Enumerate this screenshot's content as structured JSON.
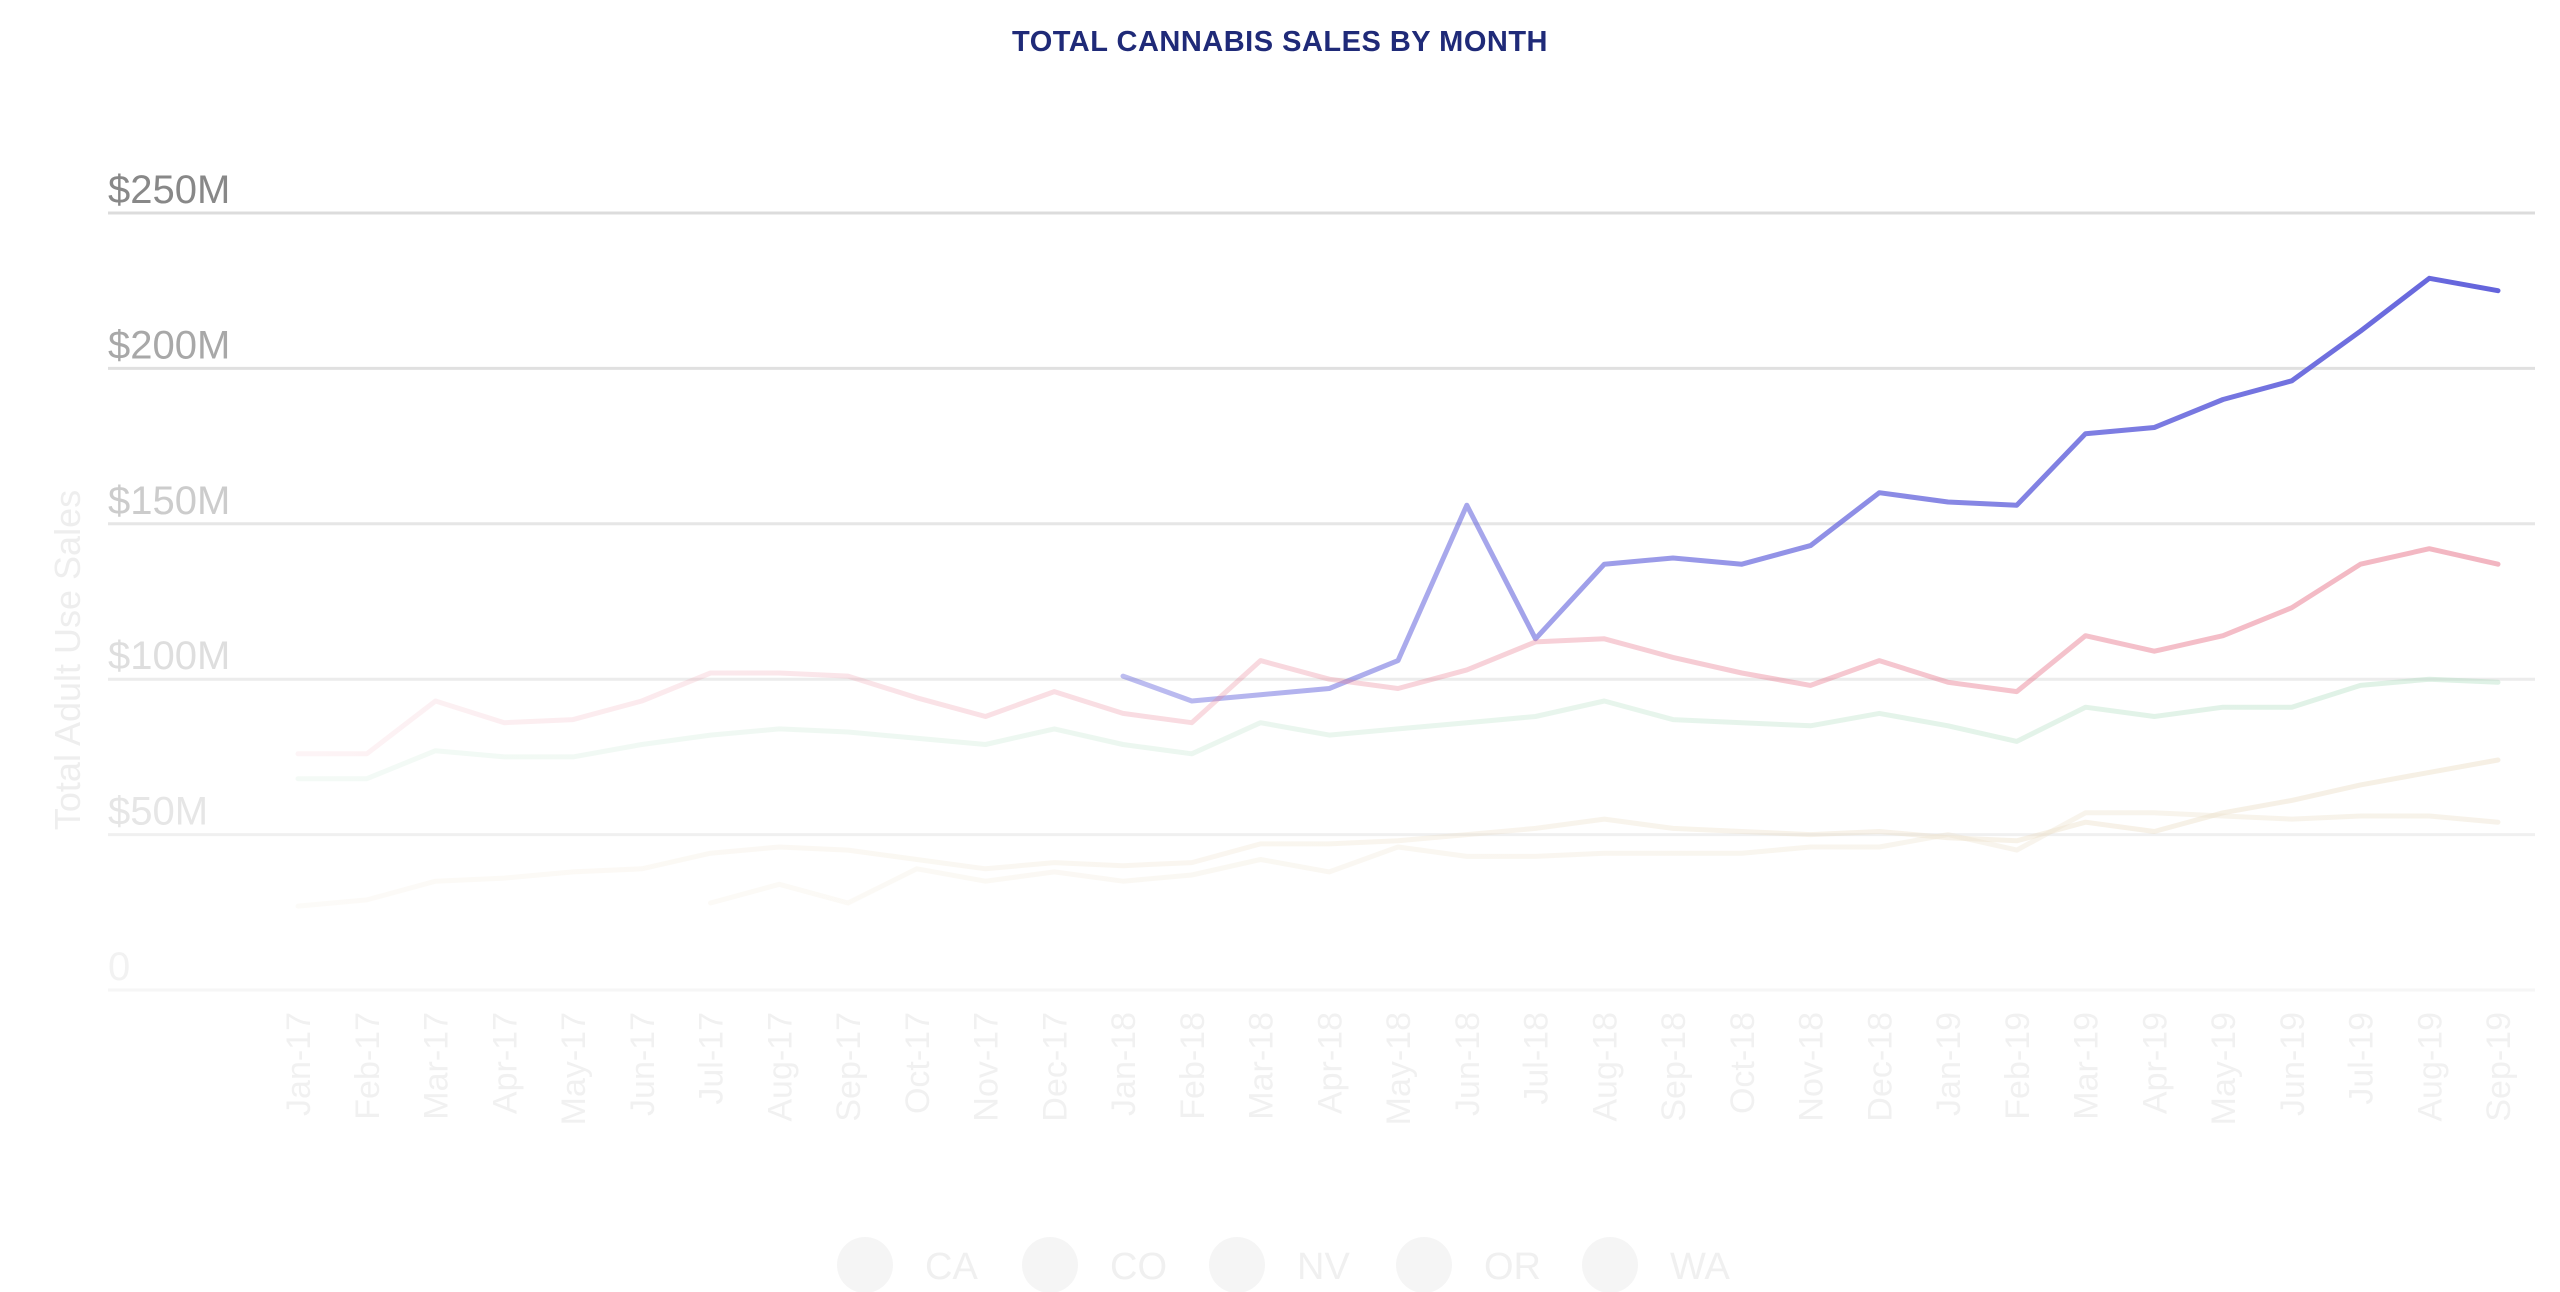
{
  "chart_data": {
    "type": "line",
    "title": "TOTAL CANNABIS SALES BY MONTH",
    "ylabel": "Total Adult Use Sales",
    "ylim": [
      0,
      250
    ],
    "ytick_labels": [
      "0",
      "$50M",
      "$100M",
      "$150M",
      "$200M",
      "$250M"
    ],
    "ytick_values": [
      0,
      50,
      100,
      150,
      200,
      250
    ],
    "categories": [
      "Jan-17",
      "Feb-17",
      "Mar-17",
      "Apr-17",
      "May-17",
      "Jun-17",
      "Jul-17",
      "Aug-17",
      "Sep-17",
      "Oct-17",
      "Nov-17",
      "Dec-17",
      "Jan-18",
      "Feb-18",
      "Mar-18",
      "Apr-18",
      "May-18",
      "Jun-18",
      "Jul-18",
      "Aug-18",
      "Sep-18",
      "Oct-18",
      "Nov-18",
      "Dec-18",
      "Jan-19",
      "Feb-19",
      "Mar-19",
      "Apr-19",
      "May-19",
      "Jun-19",
      "Jul-19",
      "Aug-19",
      "Sep-19"
    ],
    "series": [
      {
        "name": "CA",
        "color": "#6464dc",
        "values": [
          null,
          null,
          null,
          null,
          null,
          null,
          null,
          null,
          null,
          null,
          null,
          null,
          101,
          93,
          95,
          97,
          106,
          156,
          113,
          137,
          139,
          137,
          143,
          160,
          157,
          156,
          179,
          181,
          190,
          196,
          212,
          229,
          225
        ]
      },
      {
        "name": "CO",
        "color": "#e8798e",
        "values": [
          76,
          76,
          93,
          86,
          87,
          93,
          102,
          102,
          101,
          94,
          88,
          96,
          89,
          86,
          106,
          100,
          97,
          103,
          112,
          113,
          107,
          102,
          98,
          106,
          99,
          96,
          114,
          109,
          114,
          123,
          137,
          142,
          137
        ]
      },
      {
        "name": "NV",
        "color": "#a3d8b6",
        "values": [
          68,
          68,
          77,
          75,
          75,
          79,
          82,
          84,
          83,
          81,
          79,
          84,
          79,
          76,
          86,
          82,
          84,
          86,
          88,
          93,
          87,
          86,
          85,
          89,
          85,
          80,
          91,
          88,
          91,
          91,
          98,
          100,
          99
        ]
      },
      {
        "name": "OR",
        "color": "#eadcc3",
        "values": [
          27,
          29,
          35,
          36,
          38,
          39,
          44,
          46,
          45,
          42,
          39,
          41,
          40,
          41,
          47,
          47,
          48,
          50,
          52,
          55,
          52,
          51,
          50,
          51,
          49,
          48,
          54,
          51,
          57,
          61,
          66,
          70,
          74
        ]
      },
      {
        "name": "WA",
        "color": "#ede3cf",
        "values": [
          null,
          null,
          null,
          null,
          null,
          null,
          28,
          34,
          28,
          39,
          35,
          38,
          35,
          37,
          42,
          38,
          46,
          43,
          43,
          44,
          44,
          44,
          46,
          46,
          50,
          45,
          57,
          57,
          56,
          55,
          56,
          56,
          54
        ]
      }
    ],
    "grid": true,
    "legend_position": "bottom-center"
  }
}
